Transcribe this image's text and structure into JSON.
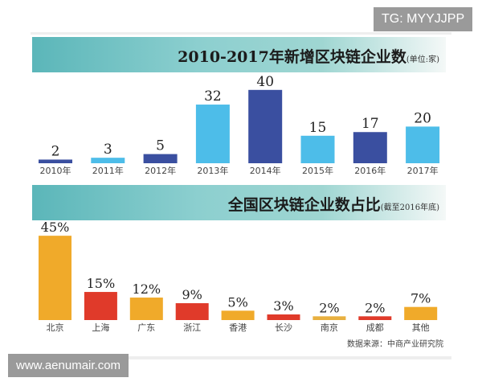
{
  "watermarks": {
    "top": "TG: MYYJJPP",
    "bottom": "www.aenumair.com"
  },
  "source": "数据来源：中商产业研究院",
  "colors": {
    "light_blue": "#4dbde9",
    "dark_blue": "#3a4fa0",
    "orange": "#f0aa2a",
    "red": "#e03a2a"
  },
  "chart_data": [
    {
      "type": "bar",
      "title": "2010-2017年新增区块链企业数",
      "unit": "(单位:家)",
      "categories": [
        "2010年",
        "2011年",
        "2012年",
        "2013年",
        "2014年",
        "2015年",
        "2016年",
        "2017年"
      ],
      "values": [
        2,
        3,
        5,
        32,
        40,
        15,
        17,
        20
      ],
      "bar_colors": [
        "#3a4fa0",
        "#4dbde9",
        "#3a4fa0",
        "#4dbde9",
        "#3a4fa0",
        "#4dbde9",
        "#3a4fa0",
        "#4dbde9"
      ],
      "data_labels": [
        "2",
        "3",
        "5",
        "32",
        "40",
        "15",
        "17",
        "20"
      ]
    },
    {
      "type": "bar",
      "title": "全国区块链企业数占比",
      "unit": "(截至2016年底)",
      "categories": [
        "北京",
        "上海",
        "广东",
        "浙江",
        "香港",
        "长沙",
        "南京",
        "成都",
        "其他"
      ],
      "values": [
        45,
        15,
        12,
        9,
        5,
        3,
        2,
        2,
        7
      ],
      "bar_colors": [
        "#f0aa2a",
        "#e03a2a",
        "#f0aa2a",
        "#e03a2a",
        "#f0aa2a",
        "#e03a2a",
        "#e8b040",
        "#e03a2a",
        "#f0aa2a"
      ],
      "data_labels": [
        "45%",
        "15%",
        "12%",
        "9%",
        "5%",
        "3%",
        "2%",
        "2%",
        "7%"
      ]
    }
  ]
}
